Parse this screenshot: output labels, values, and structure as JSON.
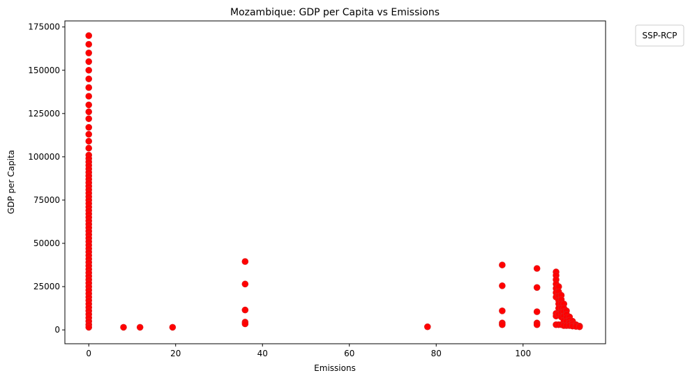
{
  "chart_data": {
    "type": "scatter",
    "title": "Mozambique: GDP per Capita vs Emissions",
    "xlabel": "Emissions",
    "ylabel": "GDP per Capita",
    "xlim": [
      -5.5,
      119
    ],
    "ylim": [
      -8000,
      178500
    ],
    "xticks": [
      0,
      20,
      40,
      60,
      80,
      100
    ],
    "yticks": [
      0,
      25000,
      50000,
      75000,
      100000,
      125000,
      150000,
      175000
    ],
    "grid": false,
    "legend": {
      "title": "SSP-RCP",
      "entries": [],
      "placement": "outside-top-right"
    },
    "marker_color": "#ff0000",
    "marker_edge_color": "#d62728",
    "series": [
      {
        "x": [
          0,
          0,
          0,
          0,
          0,
          0,
          0,
          0,
          0,
          0,
          0,
          0,
          0,
          0,
          0,
          0,
          0,
          0,
          0,
          0,
          0,
          0,
          0,
          0,
          0,
          0,
          0,
          0,
          0,
          0,
          0,
          0,
          0,
          0,
          0,
          0,
          0,
          0,
          0,
          0,
          0,
          0,
          0,
          0,
          0,
          0,
          0,
          0,
          0,
          0,
          0,
          0,
          0,
          0,
          0,
          0,
          0,
          0,
          0,
          0,
          0,
          0,
          0,
          0,
          0,
          0,
          8,
          11.8,
          19.3,
          36,
          36,
          36,
          36,
          36,
          78,
          95.2,
          95.2,
          95.2,
          95.2,
          95.2,
          103.2,
          103.2,
          103.2,
          103.2,
          103.2,
          107.6,
          107.6,
          107.6,
          107.6,
          107.6,
          107.6,
          107.6,
          107.6,
          107.6,
          107.6,
          108.2,
          108.2,
          108.2,
          108.2,
          108.2,
          108.2,
          108.2,
          108.2,
          108.8,
          108.8,
          108.8,
          108.8,
          108.8,
          108.8,
          108.8,
          109.4,
          109.4,
          109.4,
          109.4,
          109.4,
          109.4,
          110,
          110,
          110,
          110,
          110,
          110.7,
          110.7,
          110.7,
          110.7,
          111.4,
          111.4,
          111.4,
          112.2,
          112.2,
          113,
          113
        ],
        "y": [
          170000,
          165000,
          160000,
          155000,
          150000,
          145000,
          140000,
          135000,
          130000,
          126000,
          122000,
          117000,
          113000,
          109000,
          105000,
          101000,
          99000,
          97000,
          95000,
          93000,
          91000,
          89000,
          87000,
          85000,
          83000,
          81000,
          79000,
          77000,
          75000,
          73000,
          71000,
          69000,
          67000,
          65000,
          63000,
          61000,
          59000,
          57000,
          55000,
          53000,
          51000,
          49000,
          47000,
          45000,
          43000,
          41000,
          39000,
          37000,
          35000,
          33000,
          31000,
          29000,
          27000,
          25000,
          23000,
          21000,
          19000,
          17000,
          15000,
          13000,
          11000,
          9000,
          7000,
          5000,
          3000,
          1500,
          1500,
          1500,
          1500,
          39500,
          26500,
          11500,
          4500,
          3500,
          1800,
          37500,
          25500,
          11000,
          4000,
          3000,
          35500,
          24500,
          10500,
          4000,
          3000,
          33500,
          31500,
          29000,
          26500,
          24000,
          21500,
          19000,
          9500,
          8000,
          3000,
          25000,
          22000,
          19500,
          17000,
          15000,
          12500,
          9000,
          3000,
          20000,
          17500,
          15000,
          12500,
          10000,
          7500,
          3000,
          15000,
          12500,
          10500,
          8000,
          5500,
          2500,
          11000,
          9000,
          7000,
          5000,
          2500,
          7500,
          5500,
          4000,
          2500,
          5000,
          3500,
          2200,
          3000,
          2000,
          2200,
          1800
        ]
      }
    ]
  }
}
